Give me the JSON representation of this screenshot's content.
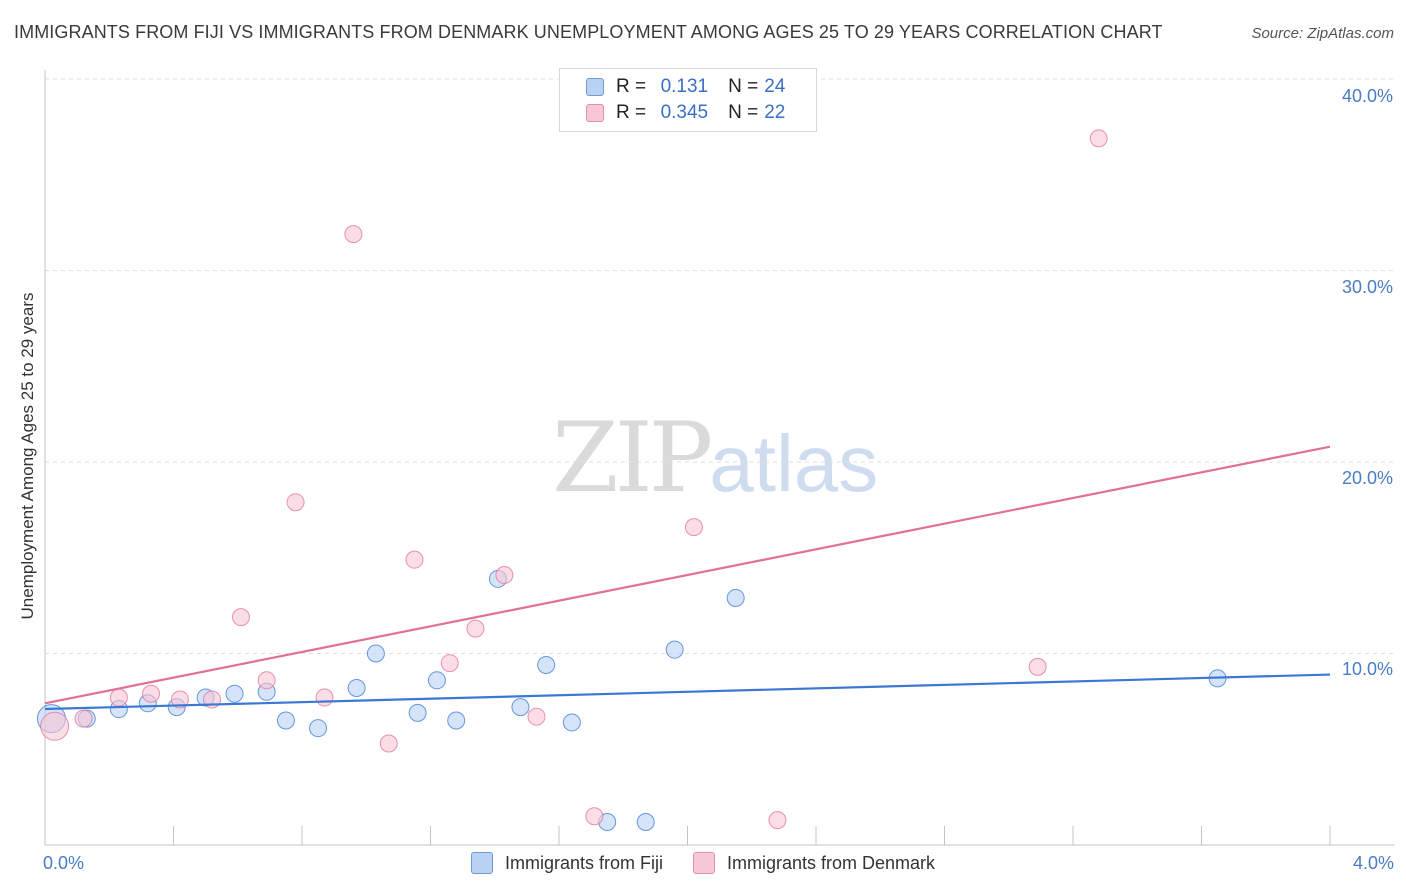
{
  "title": "IMMIGRANTS FROM FIJI VS IMMIGRANTS FROM DENMARK UNEMPLOYMENT AMONG AGES 25 TO 29 YEARS CORRELATION CHART",
  "source": "Source: ZipAtlas.com",
  "watermark": {
    "zip": "ZIP",
    "atlas": "atlas"
  },
  "legend_top": {
    "rows": [
      {
        "r_label": "R =",
        "r_value": "0.131",
        "n_label": "N =",
        "n_value": "24"
      },
      {
        "r_label": "R =",
        "r_value": "0.345",
        "n_label": "N =",
        "n_value": "22"
      }
    ]
  },
  "chart_data": {
    "type": "scatter",
    "title": "IMMIGRANTS FROM FIJI VS IMMIGRANTS FROM DENMARK UNEMPLOYMENT AMONG AGES 25 TO 29 YEARS CORRELATION CHART",
    "xlabel": "",
    "ylabel": "Unemployment Among Ages 25 to 29 years",
    "xlim": [
      0,
      4.0
    ],
    "ylim": [
      0,
      40.0
    ],
    "x_tick_labels": [
      "0.0%",
      "4.0%"
    ],
    "y_ticks": [
      10,
      20,
      30,
      40
    ],
    "y_tick_labels": [
      "10.0%",
      "20.0%",
      "30.0%",
      "40.0%"
    ],
    "grid": true,
    "legend_position": "bottom-center",
    "series": [
      {
        "name": "Immigrants from Fiji",
        "color": "#3a78d4",
        "fill": "#b9d2f3",
        "R": 0.131,
        "N": 24,
        "trend": [
          [
            0,
            7.1
          ],
          [
            4.0,
            8.9
          ]
        ],
        "points": [
          [
            0.02,
            6.6
          ],
          [
            0.13,
            6.6
          ],
          [
            0.23,
            7.1
          ],
          [
            0.32,
            7.4
          ],
          [
            0.41,
            7.2
          ],
          [
            0.5,
            7.7
          ],
          [
            0.59,
            7.9
          ],
          [
            0.69,
            8.0
          ],
          [
            0.75,
            6.5
          ],
          [
            0.85,
            6.1
          ],
          [
            0.97,
            8.2
          ],
          [
            1.03,
            10.0
          ],
          [
            1.16,
            6.9
          ],
          [
            1.22,
            8.6
          ],
          [
            1.28,
            6.5
          ],
          [
            1.41,
            13.9
          ],
          [
            1.48,
            7.2
          ],
          [
            1.56,
            9.4
          ],
          [
            1.64,
            6.4
          ],
          [
            1.75,
            1.2
          ],
          [
            1.87,
            1.2
          ],
          [
            1.96,
            10.2
          ],
          [
            2.15,
            12.9
          ],
          [
            3.65,
            8.7
          ]
        ]
      },
      {
        "name": "Immigrants from Denmark",
        "color": "#e0709a",
        "fill": "#f8c7d6",
        "R": 0.345,
        "N": 22,
        "trend": [
          [
            0,
            7.4
          ],
          [
            4.0,
            20.8
          ]
        ],
        "points": [
          [
            0.03,
            6.2
          ],
          [
            0.12,
            6.6
          ],
          [
            0.23,
            7.7
          ],
          [
            0.33,
            7.9
          ],
          [
            0.42,
            7.6
          ],
          [
            0.52,
            7.6
          ],
          [
            0.61,
            11.9
          ],
          [
            0.69,
            8.6
          ],
          [
            0.78,
            17.9
          ],
          [
            0.87,
            7.7
          ],
          [
            0.96,
            31.9
          ],
          [
            1.07,
            5.3
          ],
          [
            1.15,
            14.9
          ],
          [
            1.26,
            9.5
          ],
          [
            1.34,
            11.3
          ],
          [
            1.43,
            14.1
          ],
          [
            1.53,
            6.7
          ],
          [
            1.71,
            1.5
          ],
          [
            2.02,
            16.6
          ],
          [
            2.28,
            1.3
          ],
          [
            3.09,
            9.3
          ],
          [
            3.28,
            36.9
          ]
        ]
      }
    ]
  }
}
